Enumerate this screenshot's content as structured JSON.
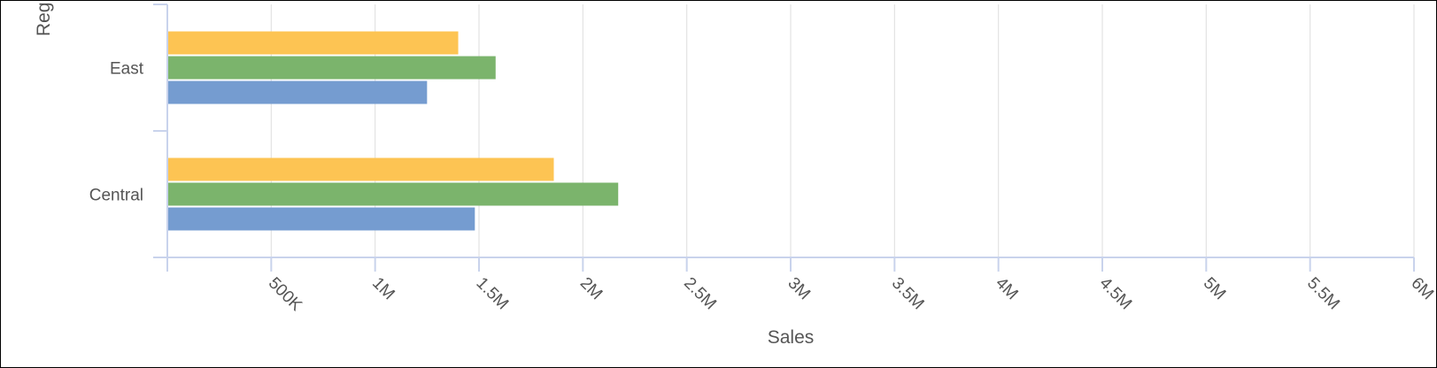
{
  "chart_data": {
    "type": "bar",
    "orientation": "horizontal",
    "ylabel": "Reg",
    "xlabel": "Sales",
    "categories": [
      "East",
      "Central"
    ],
    "xlim": [
      0,
      6000000
    ],
    "x_ticks": [
      {
        "value": 500000,
        "label": "500K"
      },
      {
        "value": 1000000,
        "label": "1M"
      },
      {
        "value": 1500000,
        "label": "1.5M"
      },
      {
        "value": 2000000,
        "label": "2M"
      },
      {
        "value": 2500000,
        "label": "2.5M"
      },
      {
        "value": 3000000,
        "label": "3M"
      },
      {
        "value": 3500000,
        "label": "3.5M"
      },
      {
        "value": 4000000,
        "label": "4M"
      },
      {
        "value": 4500000,
        "label": "4.5M"
      },
      {
        "value": 5000000,
        "label": "5M"
      },
      {
        "value": 5500000,
        "label": "5.5M"
      },
      {
        "value": 6000000,
        "label": "6M"
      }
    ],
    "series": [
      {
        "color": "#fdc453",
        "values": [
          1400000,
          1860000
        ]
      },
      {
        "color": "#7bb46c",
        "values": [
          1580000,
          2170000
        ]
      },
      {
        "color": "#759cd0",
        "values": [
          1250000,
          1480000
        ]
      }
    ],
    "grid": true,
    "legend": "none",
    "colors": {
      "axis": "#c9d3ec",
      "grid": "#e3e3e3",
      "text": "#555555"
    }
  }
}
